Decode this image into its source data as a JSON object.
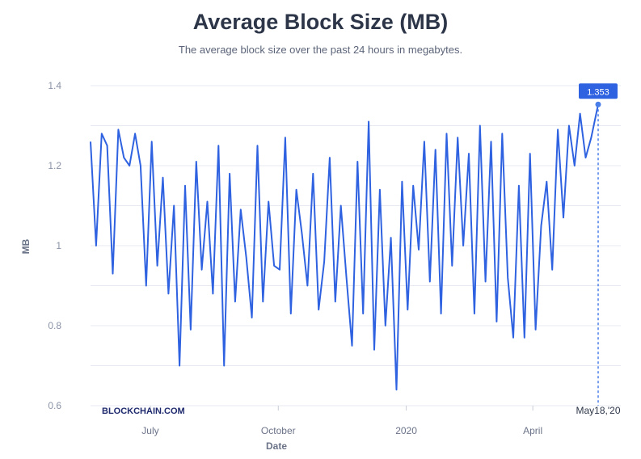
{
  "header": {
    "title": "Average Block Size (MB)",
    "subtitle": "The average block size over the past 24 hours in megabytes."
  },
  "brand": "BLOCKCHAIN.COM",
  "colors": {
    "line": "#2f62e0",
    "grid": "#e6e9ef",
    "badge": "#2f62e0",
    "marker_line": "#4a7ee8"
  },
  "chart_data": {
    "type": "line",
    "title": "Average Block Size (MB)",
    "subtitle": "The average block size over the past 24 hours in megabytes.",
    "xlabel": "Date",
    "ylabel": "MB",
    "ylim": [
      0.6,
      1.4
    ],
    "y_ticks": [
      0.6,
      0.8,
      1,
      1.2,
      1.4
    ],
    "y_tick_labels": [
      "0.6",
      "0.8",
      "1",
      "1.2",
      "1.4"
    ],
    "x_ticks": [
      {
        "date": "2019-07-01",
        "label": "July"
      },
      {
        "date": "2019-10-01",
        "label": "October"
      },
      {
        "date": "2020-01-01",
        "label": "2020"
      },
      {
        "date": "2020-04-01",
        "label": "April"
      }
    ],
    "grid": true,
    "highlight": {
      "date": "2020-05-18",
      "label": "May18,'20",
      "value": 1.353,
      "value_label": "1.353"
    },
    "series": [
      {
        "x": [
          "2019-05-19",
          "2019-05-23",
          "2019-05-27",
          "2019-05-31",
          "2019-06-04",
          "2019-06-08",
          "2019-06-12",
          "2019-06-16",
          "2019-06-20",
          "2019-06-24",
          "2019-06-28",
          "2019-07-02",
          "2019-07-06",
          "2019-07-10",
          "2019-07-14",
          "2019-07-18",
          "2019-07-22",
          "2019-07-26",
          "2019-07-30",
          "2019-08-03",
          "2019-08-07",
          "2019-08-11",
          "2019-08-15",
          "2019-08-19",
          "2019-08-23",
          "2019-08-27",
          "2019-08-31",
          "2019-09-04",
          "2019-09-08",
          "2019-09-12",
          "2019-09-16",
          "2019-09-20",
          "2019-09-24",
          "2019-09-28",
          "2019-10-02",
          "2019-10-06",
          "2019-10-10",
          "2019-10-14",
          "2019-10-18",
          "2019-10-22",
          "2019-10-26",
          "2019-10-30",
          "2019-11-03",
          "2019-11-07",
          "2019-11-11",
          "2019-11-15",
          "2019-11-19",
          "2019-11-23",
          "2019-11-27",
          "2019-12-01",
          "2019-12-05",
          "2019-12-09",
          "2019-12-13",
          "2019-12-17",
          "2019-12-21",
          "2019-12-25",
          "2019-12-29",
          "2020-01-02",
          "2020-01-06",
          "2020-01-10",
          "2020-01-14",
          "2020-01-18",
          "2020-01-22",
          "2020-01-26",
          "2020-01-30",
          "2020-02-03",
          "2020-02-07",
          "2020-02-11",
          "2020-02-15",
          "2020-02-19",
          "2020-02-23",
          "2020-02-27",
          "2020-03-02",
          "2020-03-06",
          "2020-03-10",
          "2020-03-14",
          "2020-03-18",
          "2020-03-22",
          "2020-03-26",
          "2020-03-30",
          "2020-04-03",
          "2020-04-07",
          "2020-04-11",
          "2020-04-15",
          "2020-04-19",
          "2020-04-23",
          "2020-04-27",
          "2020-05-01",
          "2020-05-05",
          "2020-05-09",
          "2020-05-13",
          "2020-05-18"
        ],
        "y": [
          1.26,
          1.0,
          1.28,
          1.25,
          0.93,
          1.29,
          1.22,
          1.2,
          1.28,
          1.2,
          0.9,
          1.26,
          0.95,
          1.17,
          0.88,
          1.1,
          0.7,
          1.15,
          0.79,
          1.21,
          0.94,
          1.11,
          0.88,
          1.25,
          0.7,
          1.18,
          0.86,
          1.09,
          0.97,
          0.82,
          1.25,
          0.86,
          1.11,
          0.95,
          0.94,
          1.27,
          0.83,
          1.14,
          1.03,
          0.9,
          1.18,
          0.84,
          0.96,
          1.22,
          0.86,
          1.1,
          0.92,
          0.75,
          1.21,
          0.83,
          1.31,
          0.74,
          1.14,
          0.8,
          1.02,
          0.64,
          1.16,
          0.84,
          1.15,
          0.99,
          1.26,
          0.91,
          1.24,
          0.83,
          1.28,
          0.95,
          1.27,
          1.0,
          1.23,
          0.83,
          1.3,
          0.91,
          1.26,
          0.81,
          1.28,
          0.92,
          0.77,
          1.15,
          0.77,
          1.23,
          0.79,
          1.05,
          1.16,
          0.94,
          1.29,
          1.07,
          1.3,
          1.2,
          1.33,
          1.22,
          1.27,
          1.353
        ]
      }
    ]
  }
}
